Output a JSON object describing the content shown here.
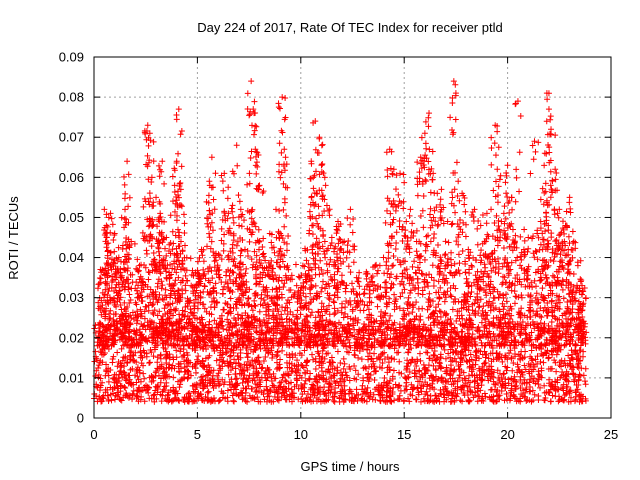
{
  "chart_data": {
    "type": "scatter",
    "title": "Day 224 of 2017, Rate Of TEC Index for receiver ptld",
    "xlabel": "GPS time / hours",
    "ylabel": "ROTI / TECUs",
    "xlim": [
      0,
      25
    ],
    "ylim": [
      0,
      0.09
    ],
    "xticks": [
      0,
      5,
      10,
      15,
      20,
      25
    ],
    "xtick_labels": [
      "0",
      "5",
      "10",
      "15",
      "20",
      "25"
    ],
    "yticks": [
      0,
      0.01,
      0.02,
      0.03,
      0.04,
      0.05,
      0.06,
      0.07,
      0.08,
      0.09
    ],
    "ytick_labels": [
      "0",
      "0.01",
      "0.02",
      "0.03",
      "0.04",
      "0.05",
      "0.06",
      "0.07",
      "0.08",
      "0.09"
    ],
    "grid": true,
    "marker": "plus",
    "color": "#ff0000",
    "series": [
      {
        "name": "ROTI",
        "x_range_hours": [
          0,
          23.8
        ],
        "points": [
          [
            0.4,
            0.037
          ],
          [
            0.5,
            0.052
          ],
          [
            0.6,
            0.048
          ],
          [
            0.8,
            0.051
          ],
          [
            1.0,
            0.046
          ],
          [
            1.2,
            0.04
          ],
          [
            1.4,
            0.043
          ],
          [
            1.5,
            0.052
          ],
          [
            1.6,
            0.064
          ],
          [
            1.8,
            0.044
          ],
          [
            2.2,
            0.038
          ],
          [
            2.5,
            0.054
          ],
          [
            2.6,
            0.073
          ],
          [
            2.7,
            0.071
          ],
          [
            2.8,
            0.06
          ],
          [
            3.0,
            0.055
          ],
          [
            3.2,
            0.051
          ],
          [
            3.3,
            0.064
          ],
          [
            3.5,
            0.045
          ],
          [
            3.7,
            0.041
          ],
          [
            3.9,
            0.058
          ],
          [
            4.0,
            0.064
          ],
          [
            4.1,
            0.077
          ],
          [
            4.2,
            0.057
          ],
          [
            4.4,
            0.043
          ],
          [
            4.7,
            0.033
          ],
          [
            5.0,
            0.036
          ],
          [
            5.2,
            0.042
          ],
          [
            5.6,
            0.058
          ],
          [
            5.7,
            0.065
          ],
          [
            5.9,
            0.041
          ],
          [
            6.3,
            0.061
          ],
          [
            6.5,
            0.051
          ],
          [
            6.7,
            0.053
          ],
          [
            6.9,
            0.068
          ],
          [
            7.1,
            0.052
          ],
          [
            7.3,
            0.042
          ],
          [
            7.6,
            0.084
          ],
          [
            7.7,
            0.077
          ],
          [
            7.8,
            0.067
          ],
          [
            8.0,
            0.058
          ],
          [
            8.2,
            0.041
          ],
          [
            8.5,
            0.046
          ],
          [
            8.8,
            0.052
          ],
          [
            9.0,
            0.046
          ],
          [
            9.1,
            0.08
          ],
          [
            9.2,
            0.067
          ],
          [
            9.4,
            0.037
          ],
          [
            9.8,
            0.033
          ],
          [
            10.1,
            0.038
          ],
          [
            10.4,
            0.046
          ],
          [
            10.6,
            0.06
          ],
          [
            10.7,
            0.074
          ],
          [
            10.9,
            0.07
          ],
          [
            11.0,
            0.063
          ],
          [
            11.2,
            0.058
          ],
          [
            11.5,
            0.045
          ],
          [
            11.8,
            0.049
          ],
          [
            12.1,
            0.044
          ],
          [
            12.4,
            0.052
          ],
          [
            12.7,
            0.035
          ],
          [
            13.2,
            0.036
          ],
          [
            13.6,
            0.038
          ],
          [
            14.0,
            0.04
          ],
          [
            14.3,
            0.067
          ],
          [
            14.5,
            0.062
          ],
          [
            14.8,
            0.061
          ],
          [
            15.1,
            0.049
          ],
          [
            15.3,
            0.052
          ],
          [
            15.6,
            0.044
          ],
          [
            15.8,
            0.065
          ],
          [
            16.0,
            0.071
          ],
          [
            16.2,
            0.076
          ],
          [
            16.4,
            0.061
          ],
          [
            16.6,
            0.056
          ],
          [
            16.8,
            0.057
          ],
          [
            17.1,
            0.049
          ],
          [
            17.4,
            0.084
          ],
          [
            17.5,
            0.081
          ],
          [
            17.8,
            0.056
          ],
          [
            18.1,
            0.042
          ],
          [
            18.4,
            0.052
          ],
          [
            18.7,
            0.048
          ],
          [
            19.0,
            0.051
          ],
          [
            19.2,
            0.052
          ],
          [
            19.4,
            0.073
          ],
          [
            19.5,
            0.062
          ],
          [
            19.7,
            0.049
          ],
          [
            20.0,
            0.063
          ],
          [
            20.2,
            0.055
          ],
          [
            20.5,
            0.079
          ],
          [
            20.8,
            0.047
          ],
          [
            21.0,
            0.045
          ],
          [
            21.3,
            0.069
          ],
          [
            21.6,
            0.049
          ],
          [
            21.8,
            0.066
          ],
          [
            21.9,
            0.081
          ],
          [
            22.0,
            0.077
          ],
          [
            22.1,
            0.072
          ],
          [
            22.3,
            0.062
          ],
          [
            22.5,
            0.052
          ],
          [
            22.8,
            0.048
          ],
          [
            23.0,
            0.055
          ],
          [
            23.2,
            0.044
          ],
          [
            23.4,
            0.038
          ],
          [
            23.6,
            0.033
          ]
        ],
        "baseline_range": [
          0.004,
          0.024
        ]
      }
    ]
  }
}
